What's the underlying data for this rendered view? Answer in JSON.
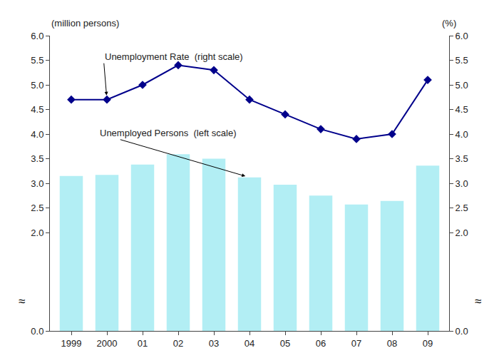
{
  "chart_data": {
    "type": "bar",
    "categories": [
      "1999",
      "2000",
      "01",
      "02",
      "03",
      "04",
      "05",
      "06",
      "07",
      "08",
      "09"
    ],
    "series": [
      {
        "type": "bar",
        "color": "#b2eef4",
        "values": [
          3.15,
          3.17,
          3.38,
          3.59,
          3.5,
          3.12,
          2.97,
          2.75,
          2.57,
          2.64,
          3.36
        ]
      },
      {
        "type": "line",
        "axis": "y2",
        "color": "#00008B",
        "marker": "diamond",
        "values": [
          4.7,
          4.7,
          5.0,
          5.4,
          5.3,
          4.7,
          4.4,
          4.1,
          3.9,
          4.0,
          5.1
        ]
      }
    ],
    "ylabel": "(million persons)",
    "y2label": "(%)",
    "ylim": [
      0.0,
      6.0
    ],
    "yticks": [
      {
        "value": 0.0,
        "label": "0.0"
      },
      {
        "value": 2.0,
        "label": "2.0"
      },
      2.5,
      {
        "value": 3.0,
        "label": "3.0"
      },
      3.5,
      {
        "value": 4.0,
        "label": "4.0"
      },
      4.5,
      {
        "value": 5.0,
        "label": "5.0"
      },
      5.5,
      {
        "value": 6.0,
        "label": "6.0"
      }
    ],
    "y2lim": [
      0.0,
      6.0
    ],
    "y2ticks": [
      {
        "value": 0.0,
        "label": "0.0"
      },
      {
        "value": 2.0,
        "label": "2.0"
      },
      2.5,
      {
        "value": 3.0,
        "label": "3.0"
      },
      3.5,
      {
        "value": 4.0,
        "label": "4.0"
      },
      4.5,
      {
        "value": 5.0,
        "label": "5.0"
      },
      5.5,
      {
        "value": 6.0,
        "label": "6.0"
      }
    ],
    "annotations": [
      {
        "text": "Unemployment Rate  (right scale)",
        "x": "2000",
        "axis": "y2"
      },
      {
        "text": "Unemployed Persons  (left scale)",
        "x": "04",
        "axis": "y"
      },
      {
        "text": "≈",
        "axis": "y"
      },
      {
        "text": "≈",
        "axis": "y2"
      }
    ],
    "grid": false
  }
}
